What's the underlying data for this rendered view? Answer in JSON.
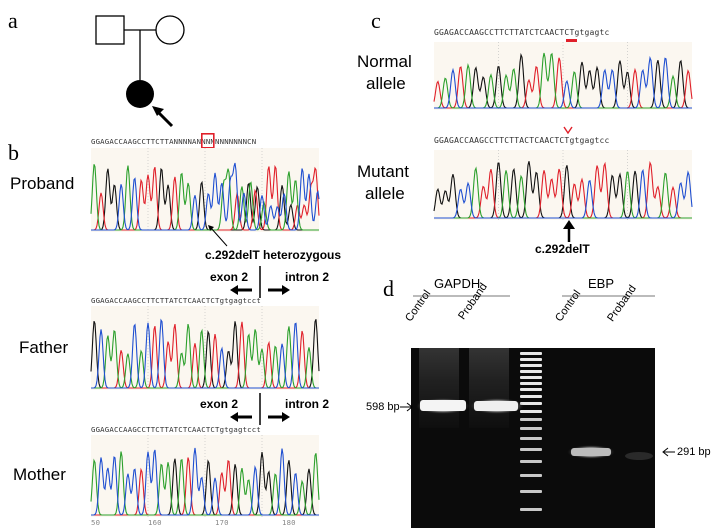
{
  "panels": {
    "a": "a",
    "b": "b",
    "c": "c",
    "d": "d"
  },
  "panel_b": {
    "proband_label": "Proband",
    "father_label": "Father",
    "mother_label": "Mother",
    "proband_seq": "GGAGACCAAGCCTTCTTANNNNANNNNNNNNNNNCN",
    "father_seq": "GGAGACCAAGCCTTCTTATCTCAACTCTgtgagtcct",
    "mother_seq": "GGAGACCAAGCCTTCTTATCTCAACTCTgtgagtcct",
    "mutation_label": "c.292delT heterozygous",
    "exon_label": "exon 2",
    "intron_label": "intron 2",
    "axis_ticks": [
      "50",
      "160",
      "170",
      "180"
    ]
  },
  "panel_c": {
    "normal_line1": "Normal",
    "normal_line2": "allele",
    "mutant_line1": "Mutant",
    "mutant_line2": "allele",
    "normal_seq": "GGAGACCAAGCCTTCTTATCTCAACTCTgtgagtc",
    "mutant_seq": "GGAGACCAAGCCTTCTTACTCAACTCTgtgagtcc",
    "mutation_label": "c.292delT"
  },
  "panel_d": {
    "gapdh_label": "GAPDH",
    "ebp_label": "EBP",
    "lanes": [
      "Control",
      "Proband",
      "Control",
      "Proband"
    ],
    "band_598": "598 bp",
    "band_291": "291 bp"
  },
  "colors": {
    "A": "#2ca02c",
    "C": "#1f4fd1",
    "G": "#111111",
    "T": "#e0202a",
    "highlight": "#e0202a"
  }
}
